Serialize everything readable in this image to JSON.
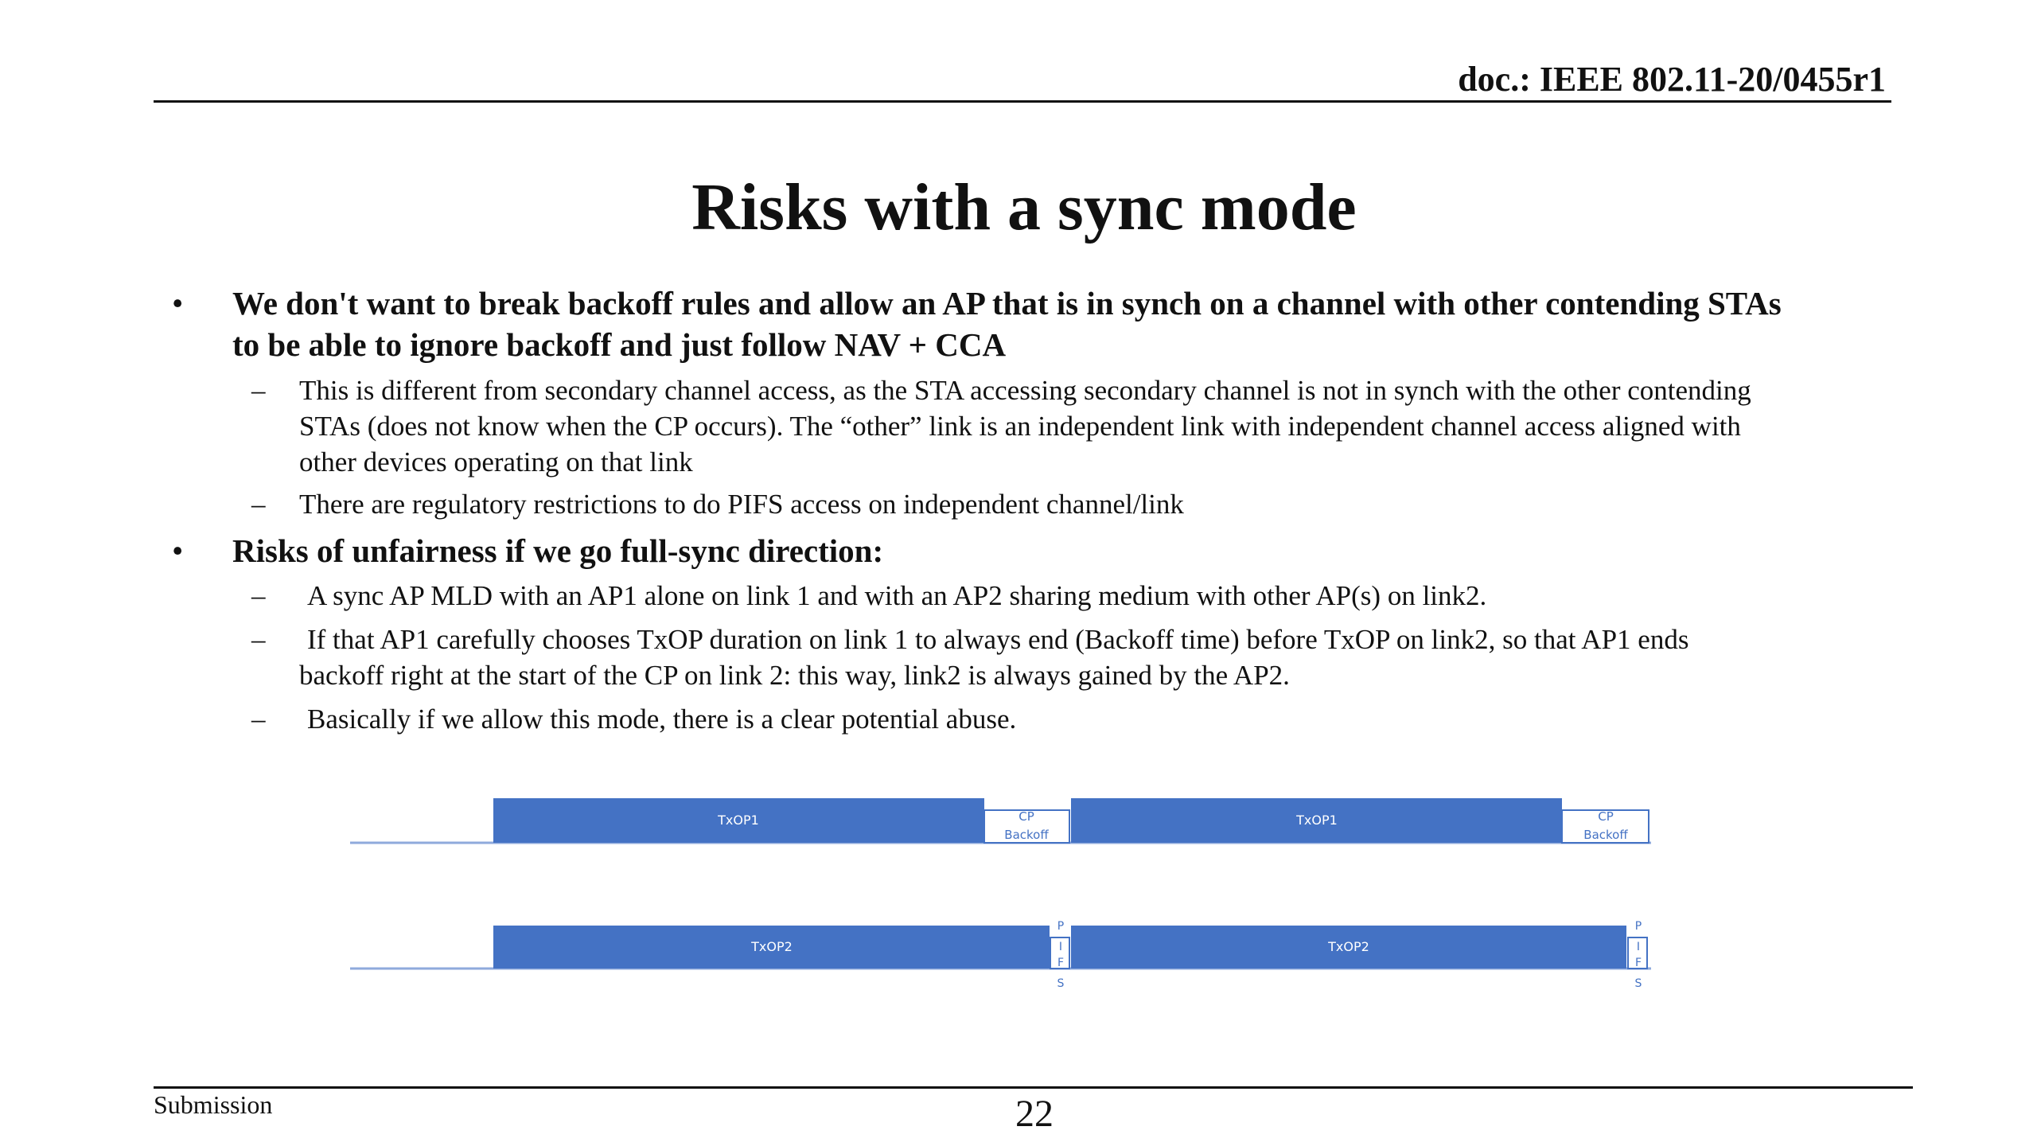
{
  "header": {
    "doc_id": "doc.: IEEE 802.11-20/0455r1"
  },
  "title": "Risks with a sync mode",
  "bullets": {
    "b1": {
      "marker": "•",
      "line1": "We don't want to break backoff rules and allow an AP that is in synch on a channel with other contending STAs",
      "line2": "to be able to ignore backoff and just follow NAV + CCA",
      "subs": [
        {
          "marker": "–",
          "line1": "This is different from secondary channel access, as the STA accessing secondary channel is not in synch with the other contending",
          "line2": "STAs (does not know when the CP occurs). The “other” link is an independent link with independent channel access aligned with",
          "line3": "other devices operating on that link"
        },
        {
          "marker": "–",
          "line1": "There are regulatory restrictions to do PIFS access on independent channel/link"
        }
      ]
    },
    "b2": {
      "marker": "•",
      "line1": "Risks of unfairness if we go full-sync direction:",
      "subs": [
        {
          "marker": "–",
          "line1": "A sync AP MLD with an AP1 alone on link 1 and with an AP2 sharing medium with other AP(s) on link2."
        },
        {
          "marker": "–",
          "line1": "If that AP1 carefully chooses TxOP duration on link 1 to always end (Backoff time) before TxOP on link2, so that AP1 ends",
          "line2": "backoff right at the start of the CP on link 2: this way, link2 is always gained by the AP2."
        },
        {
          "marker": "–",
          "line1": "Basically if we allow this mode, there is a clear potential abuse."
        }
      ]
    }
  },
  "diagram": {
    "colors": {
      "block": "#4472c4",
      "outline": "#4472c4",
      "baseline": "#8faadc",
      "label_light": "#ffffff",
      "label_dark": "#4472c4"
    },
    "link1": {
      "txop_label": "TxOP1",
      "cp_line1": "CP",
      "cp_line2": "Backoff"
    },
    "link2": {
      "txop_label": "TxOP2",
      "pifs_letters": [
        "P",
        "I",
        "F",
        "S"
      ]
    }
  },
  "footer": {
    "left": "Submission",
    "page": "22"
  }
}
